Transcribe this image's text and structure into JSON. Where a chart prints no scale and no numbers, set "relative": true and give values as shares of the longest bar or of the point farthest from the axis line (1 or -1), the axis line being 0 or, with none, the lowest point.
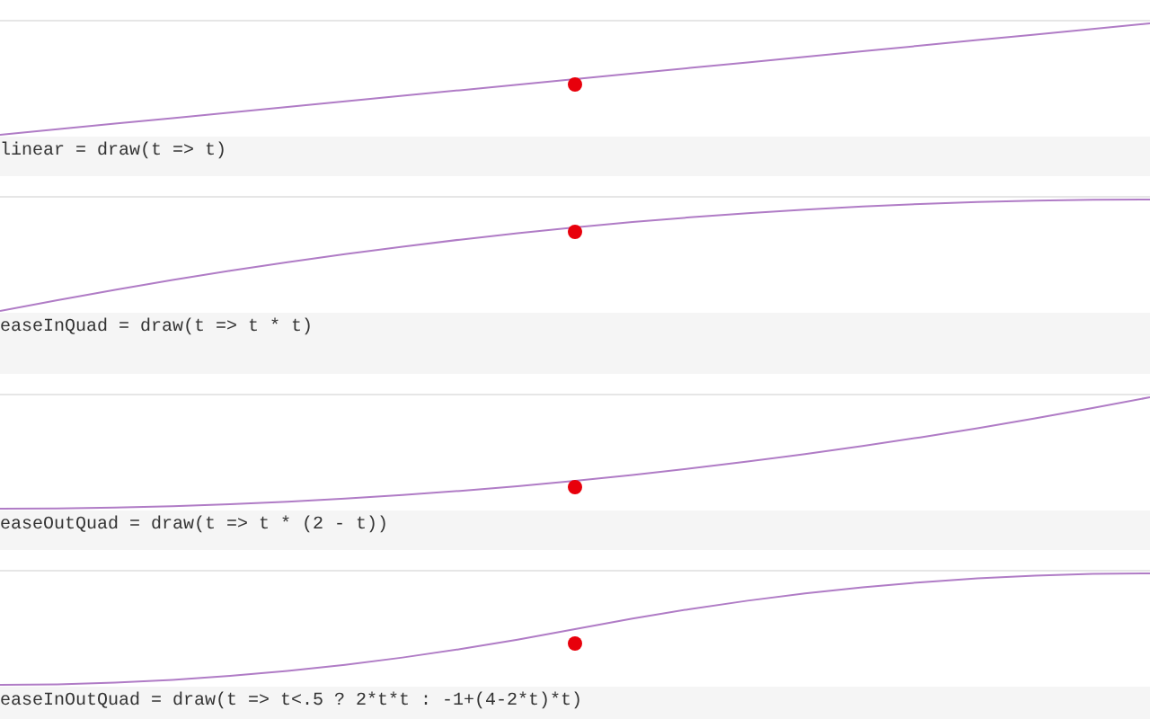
{
  "chart_data": [
    {
      "type": "line",
      "relative": true,
      "annotations": [
        "linear = draw(t => t)"
      ],
      "categories": [
        null,
        null,
        null,
        null,
        null,
        null,
        null,
        null,
        null,
        null,
        null,
        null,
        null,
        null,
        null,
        null,
        null,
        null,
        null,
        null,
        null
      ],
      "series": [
        {
          "color": "#b07cc6",
          "values": [
            0,
            0.05,
            0.1,
            0.15,
            0.2,
            0.25,
            0.3,
            0.35,
            0.4,
            0.45,
            0.5,
            0.55,
            0.6,
            0.65,
            0.7,
            0.75,
            0.8,
            0.85,
            0.9,
            0.95,
            1
          ]
        }
      ]
    },
    {
      "type": "line",
      "relative": true,
      "annotations": [
        "easeInQuad = draw(t => t * t)"
      ],
      "categories": [
        null,
        null,
        null,
        null,
        null,
        null,
        null,
        null,
        null,
        null,
        null,
        null,
        null,
        null,
        null,
        null,
        null,
        null,
        null,
        null,
        null
      ],
      "series": [
        {
          "color": "#b07cc6",
          "values": [
            0,
            0.0975,
            0.19,
            0.2775,
            0.36,
            0.4375,
            0.51,
            0.5775,
            0.64,
            0.6975,
            0.75,
            0.7975,
            0.84,
            0.8775,
            0.91,
            0.9375,
            0.96,
            0.9775,
            0.99,
            0.9975,
            1
          ]
        }
      ]
    },
    {
      "type": "line",
      "relative": true,
      "annotations": [
        "easeOutQuad = draw(t => t * (2 - t))"
      ],
      "categories": [
        null,
        null,
        null,
        null,
        null,
        null,
        null,
        null,
        null,
        null,
        null,
        null,
        null,
        null,
        null,
        null,
        null,
        null,
        null,
        null,
        null
      ],
      "series": [
        {
          "color": "#b07cc6",
          "values": [
            0,
            0.0025,
            0.01,
            0.0225,
            0.04,
            0.0625,
            0.09,
            0.1225,
            0.16,
            0.2025,
            0.25,
            0.3025,
            0.36,
            0.4225,
            0.49,
            0.5625,
            0.64,
            0.7225,
            0.81,
            0.9025,
            1
          ]
        }
      ]
    },
    {
      "type": "line",
      "relative": true,
      "annotations": [
        "easeInOutQuad = draw(t => t<.5 ? 2*t*t : -1+(4-2*t)*t)"
      ],
      "categories": [
        null,
        null,
        null,
        null,
        null,
        null,
        null,
        null,
        null,
        null,
        null,
        null,
        null,
        null,
        null,
        null,
        null,
        null,
        null,
        null,
        null
      ],
      "series": [
        {
          "color": "#b07cc6",
          "values": [
            0,
            0.005,
            0.02,
            0.045,
            0.08,
            0.125,
            0.18,
            0.245,
            0.32,
            0.405,
            0.5,
            0.595,
            0.68,
            0.755,
            0.82,
            0.875,
            0.92,
            0.955,
            0.98,
            0.995,
            1
          ]
        }
      ]
    }
  ]
}
